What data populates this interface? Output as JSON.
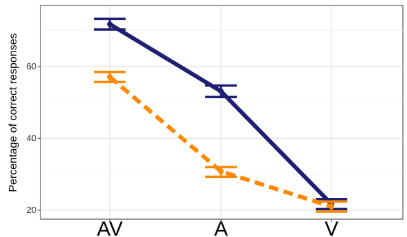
{
  "chart_data": {
    "type": "line",
    "title": "",
    "xlabel": "",
    "ylabel": "Percentage of correct responses",
    "categories": [
      "AV",
      "A",
      "V"
    ],
    "y_ticks": [
      20,
      40,
      60
    ],
    "ylim": [
      17.5,
      77
    ],
    "grid": true,
    "legend": "none",
    "series": [
      {
        "color": "#1f1f73",
        "line_style": "solid",
        "values": [
          71.8,
          53.1,
          21.7
        ],
        "error_low": [
          70.3,
          51.5,
          20.3
        ],
        "error_high": [
          73.3,
          54.7,
          23.1
        ]
      },
      {
        "color": "#ff8800",
        "line_style": "dashed",
        "values": [
          57.1,
          30.8,
          21.0
        ],
        "error_low": [
          55.7,
          29.3,
          19.6
        ],
        "error_high": [
          58.5,
          32.0,
          22.4
        ]
      }
    ]
  }
}
